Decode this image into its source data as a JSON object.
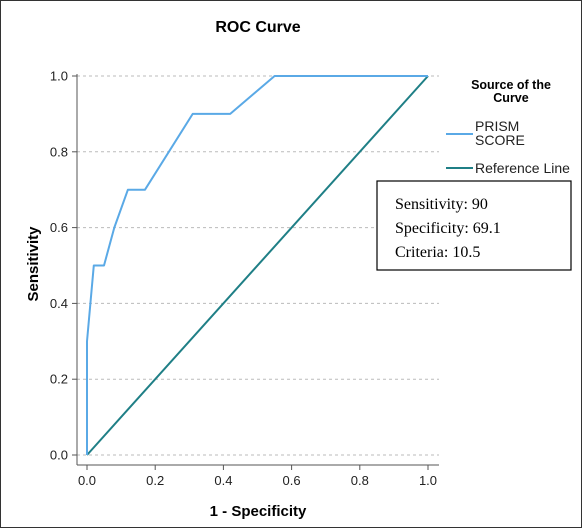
{
  "chart_data": {
    "type": "line",
    "title": "ROC Curve",
    "xlabel": "1 - Specificity",
    "ylabel": "Sensitivity",
    "xlim": [
      0,
      1
    ],
    "ylim": [
      0,
      1
    ],
    "x_ticks": [
      "0.0",
      "0.2",
      "0.4",
      "0.6",
      "0.8",
      "1.0"
    ],
    "y_ticks": [
      "0.0",
      "0.2",
      "0.4",
      "0.6",
      "0.8",
      "1.0"
    ],
    "grid": "horizontal dashed",
    "legend": {
      "title": "Source of the Curve",
      "placement": "right"
    },
    "series": [
      {
        "name": "PRISM SCORE",
        "color": "#5aa9e6",
        "x": [
          0.0,
          0.0,
          0.01,
          0.02,
          0.05,
          0.08,
          0.12,
          0.17,
          0.31,
          0.42,
          0.55,
          1.0
        ],
        "y": [
          0.0,
          0.3,
          0.4,
          0.5,
          0.5,
          0.6,
          0.7,
          0.7,
          0.9,
          0.9,
          1.0,
          1.0
        ]
      },
      {
        "name": "Reference Line",
        "color": "#1f7f86",
        "x": [
          0.0,
          1.0
        ],
        "y": [
          0.0,
          1.0
        ]
      }
    ],
    "annotation": {
      "lines": [
        "Sensitivity: 90",
        "Specificity: 69.1",
        "Criteria: 10.5"
      ]
    }
  }
}
